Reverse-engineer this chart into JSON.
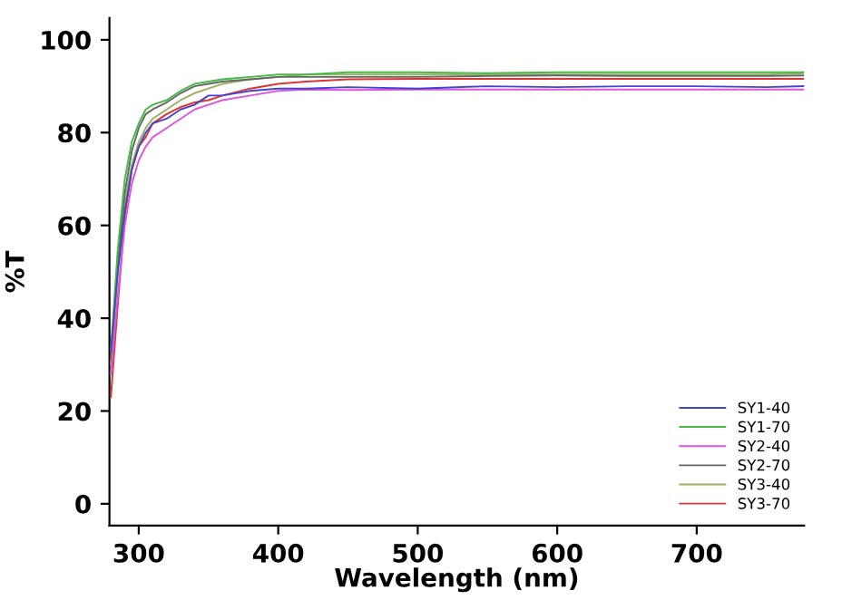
{
  "chart_data": {
    "type": "line",
    "xlabel": "Wavelength (nm)",
    "ylabel": "%T",
    "x": [
      280,
      285,
      290,
      295,
      300,
      305,
      310,
      320,
      330,
      340,
      350,
      360,
      380,
      400,
      420,
      450,
      500,
      550,
      600,
      650,
      700,
      750,
      777
    ],
    "series": [
      {
        "name": "SY1-40",
        "color": "#4444cc",
        "values": [
          33,
          50,
          63,
          72,
          77,
          80,
          82,
          83,
          85,
          86,
          88,
          88,
          89,
          89.5,
          89.5,
          89.8,
          89.5,
          90,
          89.8,
          90,
          90,
          89.8,
          90
        ]
      },
      {
        "name": "SY1-70",
        "color": "#44bb44",
        "values": [
          33,
          55,
          70,
          78,
          82,
          85,
          86,
          87,
          89,
          90.5,
          91,
          91.5,
          92,
          92.5,
          92.5,
          93,
          93,
          92.8,
          93,
          93,
          93,
          93,
          93
        ]
      },
      {
        "name": "SY2-40",
        "color": "#dd55dd",
        "values": [
          28,
          45,
          60,
          69,
          74,
          77,
          79,
          81,
          83,
          85,
          86,
          87,
          88,
          89,
          89.3,
          89.2,
          89.3,
          89.3,
          89.3,
          89.3,
          89.3,
          89.3,
          89.3
        ]
      },
      {
        "name": "SY2-70",
        "color": "#666666",
        "values": [
          31,
          52,
          67,
          76,
          81,
          84,
          85,
          86.5,
          88.5,
          90,
          90.5,
          91,
          91.5,
          92,
          92,
          92,
          92,
          92.2,
          92.3,
          92.2,
          92.2,
          92.2,
          92.3
        ]
      },
      {
        "name": "SY3-40",
        "color": "#99b060",
        "values": [
          30,
          50,
          65,
          73,
          78,
          81,
          83,
          85,
          87,
          88.5,
          89.5,
          90.5,
          91.5,
          92,
          92.5,
          92.5,
          92.5,
          92.5,
          92.5,
          92.5,
          92.5,
          92.5,
          92.8
        ]
      },
      {
        "name": "SY3-70",
        "color": "#dd3333",
        "values": [
          23,
          43,
          62,
          72,
          77,
          79,
          82,
          84,
          85.5,
          86.5,
          87,
          88,
          89.5,
          90.5,
          91,
          91.5,
          91.6,
          91.6,
          91.6,
          91.6,
          91.6,
          91.6,
          91.6
        ]
      }
    ],
    "xlim": [
      279,
      777
    ],
    "ylim": [
      -4.7,
      104.7
    ],
    "xticks": [
      300,
      400,
      500,
      600,
      700
    ],
    "yticks": [
      0,
      20,
      40,
      60,
      80,
      100
    ],
    "grid": false,
    "legend": "bottom right",
    "marker": "none",
    "line_style": "solid"
  }
}
